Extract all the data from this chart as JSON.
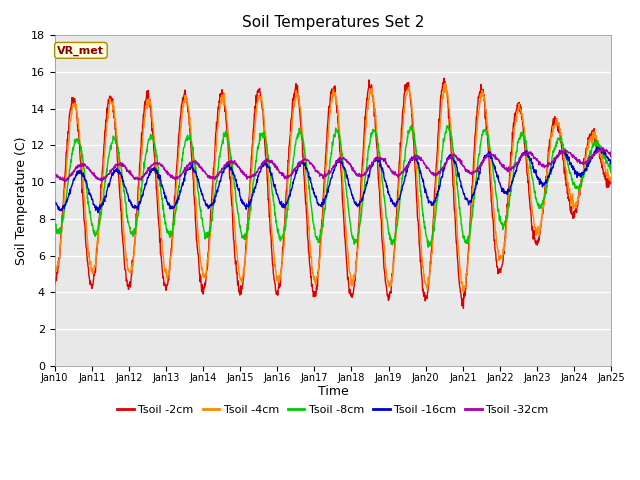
{
  "title": "Soil Temperatures Set 2",
  "xlabel": "Time",
  "ylabel": "Soil Temperature (C)",
  "ylim": [
    0,
    18
  ],
  "yticks": [
    0,
    2,
    4,
    6,
    8,
    10,
    12,
    14,
    16,
    18
  ],
  "xtick_labels": [
    "Jan 10",
    "Jan 11",
    "Jan 12",
    "Jan 13",
    "Jan 14",
    "Jan 15",
    "Jan 16",
    "Jan 17",
    "Jan 18",
    "Jan 19",
    "Jan 20",
    "Jan 21",
    "Jan 22",
    "Jan 23",
    "Jan 24",
    "Jan 25"
  ],
  "annotation_text": "VR_met",
  "colors": {
    "Tsoil -2cm": "#dd0000",
    "Tsoil -4cm": "#ff8800",
    "Tsoil -8cm": "#00cc00",
    "Tsoil -16cm": "#0000cc",
    "Tsoil -32cm": "#aa00aa"
  },
  "legend_labels": [
    "Tsoil -2cm",
    "Tsoil -4cm",
    "Tsoil -8cm",
    "Tsoil -16cm",
    "Tsoil -32cm"
  ],
  "bg_color": "#e8e8e8",
  "n_points": 1500,
  "n_days": 15
}
